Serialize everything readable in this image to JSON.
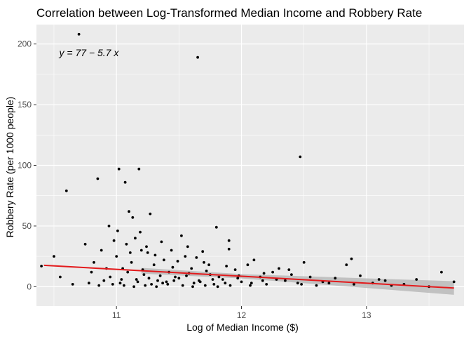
{
  "chart_data": {
    "type": "scatter",
    "title": "Correlation between Log-Transformed Median Income and Robbery Rate",
    "xlabel": "Log of Median Income ($)",
    "ylabel": "Robbery Rate (per 1000 people)",
    "xlim": [
      10.36,
      13.78
    ],
    "ylim": [
      -16,
      216
    ],
    "x_ticks": [
      11,
      12,
      13
    ],
    "y_ticks": [
      0,
      50,
      100,
      150,
      200
    ],
    "x_tick_labels": [
      "11",
      "12",
      "13"
    ],
    "y_tick_labels": [
      "0",
      "50",
      "100",
      "150",
      "200"
    ],
    "grid": true,
    "annotation": "y = 77 − 5.7 x",
    "annotation_at": [
      10.78,
      190
    ],
    "colors": {
      "panel": "#ebebeb",
      "grid_major": "#ffffff",
      "points": "#000000",
      "fit_line": "#e31a1c",
      "confidence_band": "#b3b3b3"
    },
    "fit": {
      "intercept": 77,
      "slope": -5.7,
      "x_range": [
        10.42,
        13.7
      ],
      "band": [
        [
          10.42,
          13.7
        ],
        [
          11.2,
          2.4
        ],
        [
          12.0,
          1.8
        ],
        [
          12.8,
          3.5
        ],
        [
          13.7,
          5.6
        ]
      ]
    },
    "points": [
      [
        10.7,
        208
      ],
      [
        11.65,
        189
      ],
      [
        12.47,
        107
      ],
      [
        10.6,
        79
      ],
      [
        10.85,
        89
      ],
      [
        11.02,
        97
      ],
      [
        11.18,
        97
      ],
      [
        11.07,
        86
      ],
      [
        11.1,
        62
      ],
      [
        11.27,
        60
      ],
      [
        11.13,
        57
      ],
      [
        10.94,
        50
      ],
      [
        11.01,
        46
      ],
      [
        11.8,
        49
      ],
      [
        11.52,
        42
      ],
      [
        11.2,
        30
      ],
      [
        11.9,
        38
      ],
      [
        10.75,
        35
      ],
      [
        10.5,
        25
      ],
      [
        10.4,
        17
      ],
      [
        12.1,
        22
      ],
      [
        12.3,
        15
      ],
      [
        12.5,
        20
      ],
      [
        12.88,
        23
      ],
      [
        12.84,
        18
      ],
      [
        13.6,
        12
      ],
      [
        13.7,
        4
      ],
      [
        13.1,
        6
      ],
      [
        12.7,
        3
      ],
      [
        11.9,
        31
      ],
      [
        10.55,
        8
      ],
      [
        10.65,
        2
      ],
      [
        10.8,
        12
      ],
      [
        10.9,
        5
      ],
      [
        11.0,
        25
      ],
      [
        11.05,
        15
      ],
      [
        11.08,
        35
      ],
      [
        11.12,
        20
      ],
      [
        11.15,
        40
      ],
      [
        11.22,
        10
      ],
      [
        11.25,
        28
      ],
      [
        11.3,
        18
      ],
      [
        11.33,
        5
      ],
      [
        11.38,
        22
      ],
      [
        11.42,
        12
      ],
      [
        11.47,
        8
      ],
      [
        11.55,
        25
      ],
      [
        11.6,
        15
      ],
      [
        11.62,
        3
      ],
      [
        11.7,
        20
      ],
      [
        11.75,
        10
      ],
      [
        11.85,
        6
      ],
      [
        11.95,
        14
      ],
      [
        12.0,
        4
      ],
      [
        12.05,
        18
      ],
      [
        12.15,
        8
      ],
      [
        12.2,
        2
      ],
      [
        12.25,
        12
      ],
      [
        12.35,
        5
      ],
      [
        12.4,
        10
      ],
      [
        12.45,
        3
      ],
      [
        12.55,
        8
      ],
      [
        12.6,
        1
      ],
      [
        12.65,
        4
      ],
      [
        12.75,
        7
      ],
      [
        12.9,
        2
      ],
      [
        12.95,
        9
      ],
      [
        13.05,
        3
      ],
      [
        13.15,
        5
      ],
      [
        13.2,
        1
      ],
      [
        13.3,
        2
      ],
      [
        13.4,
        6
      ],
      [
        13.5,
        0
      ],
      [
        10.95,
        8
      ],
      [
        11.03,
        3
      ],
      [
        11.09,
        12
      ],
      [
        11.16,
        6
      ],
      [
        11.21,
        14
      ],
      [
        11.28,
        2
      ],
      [
        11.35,
        9
      ],
      [
        11.4,
        4
      ],
      [
        11.45,
        16
      ],
      [
        11.5,
        7
      ],
      [
        11.58,
        11
      ],
      [
        11.66,
        5
      ],
      [
        11.72,
        13
      ],
      [
        11.78,
        2
      ],
      [
        11.82,
        8
      ],
      [
        11.88,
        17
      ],
      [
        11.98,
        9
      ],
      [
        12.08,
        3
      ],
      [
        12.18,
        11
      ],
      [
        12.28,
        6
      ],
      [
        12.38,
        14
      ],
      [
        12.48,
        2
      ],
      [
        10.82,
        20
      ],
      [
        10.88,
        30
      ],
      [
        10.92,
        15
      ],
      [
        10.98,
        38
      ],
      [
        11.11,
        28
      ],
      [
        11.19,
        45
      ],
      [
        11.24,
        33
      ],
      [
        11.31,
        26
      ],
      [
        11.36,
        37
      ],
      [
        11.44,
        30
      ],
      [
        11.49,
        21
      ],
      [
        11.57,
        33
      ],
      [
        11.64,
        24
      ],
      [
        11.69,
        29
      ],
      [
        11.74,
        18
      ],
      [
        11.06,
        1
      ],
      [
        11.14,
        0
      ],
      [
        11.23,
        1
      ],
      [
        11.32,
        0
      ],
      [
        11.41,
        2
      ],
      [
        11.53,
        1
      ],
      [
        11.61,
        0
      ],
      [
        11.71,
        1
      ],
      [
        11.81,
        0
      ],
      [
        11.91,
        1
      ],
      [
        10.78,
        3
      ],
      [
        10.86,
        1
      ],
      [
        10.97,
        2
      ],
      [
        11.04,
        6
      ],
      [
        11.17,
        4
      ],
      [
        11.26,
        7
      ],
      [
        11.37,
        3
      ],
      [
        11.46,
        5
      ],
      [
        11.56,
        9
      ],
      [
        11.67,
        4
      ],
      [
        11.77,
        6
      ],
      [
        11.87,
        3
      ],
      [
        11.97,
        7
      ],
      [
        12.07,
        1
      ],
      [
        12.17,
        5
      ]
    ]
  }
}
